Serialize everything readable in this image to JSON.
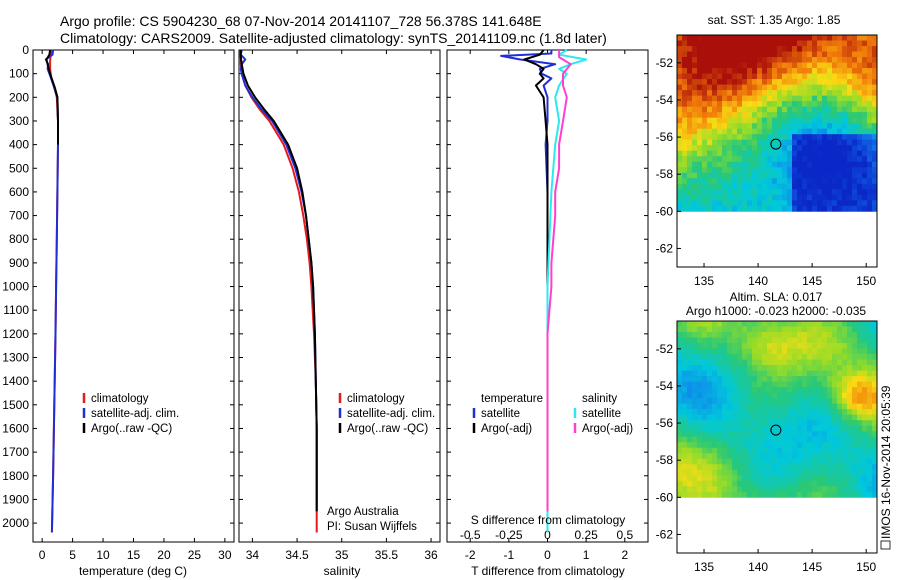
{
  "header": {
    "line1": "Argo profile: CS 5904230_68 07-Nov-2014 20141107_728 56.378S 141.648E",
    "line2": "Climatology: CARS2009. Satellite-adjusted climatology: synTS_20141109.nc (1.8d later)"
  },
  "colors": {
    "climatology": "#e41a1c",
    "satellite": "#1f2fd6",
    "argo": "#000000",
    "satellite_s": "#2ee8f0",
    "argo_s": "#ff3fd0"
  },
  "chart_data": [
    {
      "type": "line",
      "id": "temperature-panel",
      "xlabel": "temperature (deg C)",
      "ylabel": "",
      "xlim": [
        -1.5,
        31.5
      ],
      "ylim": [
        2080,
        0
      ],
      "x_ticks": [
        0,
        5,
        10,
        15,
        20,
        25,
        30
      ],
      "x_tick_labels": [
        "0",
        "5",
        "10",
        "15",
        "20",
        "25",
        "30"
      ],
      "y_ticks": [
        0,
        100,
        200,
        300,
        400,
        500,
        600,
        700,
        800,
        900,
        1000,
        1100,
        1200,
        1300,
        1400,
        1500,
        1600,
        1700,
        1800,
        1900,
        2000
      ],
      "legend": [
        "climatology",
        "satellite-adj. clim.",
        "Argo(..raw -QC)"
      ],
      "series": [
        {
          "name": "climatology",
          "color_key": "climatology",
          "depth": [
            0,
            20,
            50,
            80,
            120,
            150,
            200,
            300,
            400,
            600,
            800,
            1000,
            1200,
            1500,
            1800,
            2040
          ],
          "values": [
            1.5,
            1.4,
            1.3,
            1.3,
            1.5,
            1.9,
            2.4,
            2.6,
            2.6,
            2.5,
            2.4,
            2.3,
            2.2,
            2.0,
            1.8,
            1.6
          ]
        },
        {
          "name": "satellite-adj. clim.",
          "color_key": "satellite",
          "depth": [
            0,
            20,
            40,
            60,
            80,
            100,
            130,
            160,
            200,
            300,
            400,
            600,
            800,
            1000,
            1200,
            1500,
            1800,
            2040
          ],
          "values": [
            1.8,
            1.7,
            0.6,
            1.0,
            0.9,
            1.2,
            1.6,
            2.0,
            2.5,
            2.6,
            2.6,
            2.5,
            2.4,
            2.3,
            2.2,
            2.0,
            1.8,
            1.6
          ]
        },
        {
          "name": "Argo(..raw -QC)",
          "color_key": "argo",
          "depth": [
            0,
            20,
            40,
            60,
            80,
            100,
            130,
            160,
            200,
            300,
            400
          ],
          "values": [
            1.3,
            1.2,
            0.7,
            0.9,
            1.1,
            1.3,
            1.7,
            2.1,
            2.5,
            2.6,
            2.6
          ]
        }
      ]
    },
    {
      "type": "line",
      "id": "salinity-panel",
      "xlabel": "salinity",
      "xlim": [
        33.85,
        36.1
      ],
      "ylim": [
        2080,
        0
      ],
      "x_ticks": [
        34,
        34.5,
        35,
        35.5,
        36
      ],
      "x_tick_labels": [
        "34",
        "34.5",
        "35",
        "35.5",
        "36"
      ],
      "legend": [
        "climatology",
        "satellite-adj. clim.",
        "Argo(..raw -QC)"
      ],
      "annotations": [
        "Argo Australia",
        "PI: Susan Wijffels"
      ],
      "series": [
        {
          "name": "climatology",
          "color_key": "climatology",
          "depth": [
            0,
            30,
            60,
            100,
            150,
            200,
            250,
            300,
            400,
            500,
            600,
            700,
            800,
            900,
            1000,
            1200,
            1400,
            1600,
            1800,
            2040
          ],
          "values": [
            33.87,
            33.87,
            33.87,
            33.88,
            33.92,
            33.99,
            34.08,
            34.19,
            34.35,
            34.45,
            34.52,
            34.57,
            34.61,
            34.64,
            34.66,
            34.69,
            34.71,
            34.72,
            34.72,
            34.72
          ]
        },
        {
          "name": "satellite-adj. clim.",
          "color_key": "satellite",
          "depth": [
            0,
            20,
            40,
            60,
            80,
            100,
            150,
            200,
            250,
            300,
            400,
            500,
            600,
            700,
            800,
            900,
            1000,
            1200,
            1400,
            1600,
            1800,
            1950
          ],
          "values": [
            33.88,
            33.87,
            33.92,
            33.88,
            33.87,
            33.88,
            33.92,
            34.0,
            34.1,
            34.22,
            34.38,
            34.48,
            34.55,
            34.6,
            34.63,
            34.66,
            34.68,
            34.7,
            34.71,
            34.72,
            34.72,
            34.72
          ]
        },
        {
          "name": "Argo(..raw -QC)",
          "color_key": "argo",
          "depth": [
            0,
            30,
            60,
            100,
            150,
            200,
            250,
            300,
            400,
            500,
            600,
            700,
            800,
            900,
            1000,
            1200,
            1400,
            1600,
            1800,
            1950
          ],
          "values": [
            33.87,
            33.87,
            33.88,
            33.9,
            33.95,
            34.03,
            34.13,
            34.24,
            34.4,
            34.5,
            34.56,
            34.6,
            34.63,
            34.66,
            34.68,
            34.7,
            34.71,
            34.72,
            34.72,
            34.72
          ]
        }
      ]
    },
    {
      "type": "line",
      "id": "difference-panel",
      "xlabel": "T difference from climatology",
      "top_label": "S difference from climatology",
      "xlim": [
        -2.6,
        2.6
      ],
      "ylim": [
        2080,
        0
      ],
      "x_ticks": [
        -2,
        -1,
        0,
        1,
        2
      ],
      "x_tick_labels": [
        "-2",
        "-1",
        "0",
        "1",
        "2"
      ],
      "s_ticks": [
        -2,
        -1,
        0,
        1,
        2
      ],
      "s_tick_labels": [
        "-0.5",
        "-0.25",
        "0",
        "0.25",
        "0.5"
      ],
      "legend_headers": [
        "temperature",
        "salinity"
      ],
      "legend": [
        "satellite",
        "Argo(-adj)",
        "satellite",
        "Argo(-adj)"
      ],
      "series": [
        {
          "name": "T satellite",
          "color_key": "satellite",
          "depth": [
            0,
            15,
            25,
            40,
            60,
            80,
            100,
            120,
            150,
            200,
            300,
            400,
            600,
            800,
            1000,
            1050
          ],
          "values": [
            0.1,
            0.1,
            -1.2,
            -0.7,
            0.2,
            -0.2,
            -0.15,
            0.1,
            -0.1,
            0.0,
            0.0,
            -0.05,
            0.0,
            0.0,
            0.0,
            0.0
          ]
        },
        {
          "name": "T Argo(-adj)",
          "color_key": "argo",
          "depth": [
            0,
            20,
            40,
            60,
            80,
            100,
            120,
            150,
            200,
            300,
            400,
            500,
            600,
            700,
            800,
            900,
            1000
          ],
          "values": [
            -0.1,
            -0.2,
            -0.6,
            -0.3,
            -0.1,
            -0.2,
            -0.1,
            -0.3,
            -0.1,
            -0.05,
            0.0,
            0.0,
            0.0,
            0.0,
            0.0,
            0.0,
            0.0
          ]
        },
        {
          "name": "S satellite",
          "color_key": "satellite_s",
          "depth": [
            0,
            20,
            40,
            60,
            80,
            100,
            150,
            200,
            300,
            400,
            600,
            800,
            1000,
            1200,
            1500,
            1800,
            2040
          ],
          "values": [
            0.5,
            0.3,
            1.0,
            0.6,
            0.3,
            0.5,
            0.3,
            0.2,
            0.3,
            0.2,
            0.1,
            0.05,
            0.0,
            0.0,
            0.0,
            0.0,
            0.0
          ]
        },
        {
          "name": "S Argo(-adj)",
          "color_key": "argo_s",
          "depth": [
            0,
            30,
            60,
            100,
            150,
            200,
            300,
            400,
            500,
            600,
            700,
            800,
            900,
            1000,
            1200,
            1500,
            1800,
            1950
          ],
          "values": [
            0.3,
            0.3,
            0.6,
            0.4,
            0.4,
            0.5,
            0.4,
            0.3,
            0.3,
            0.2,
            0.2,
            0.15,
            0.1,
            0.1,
            0.0,
            0.0,
            0.0,
            0.0
          ]
        }
      ]
    },
    {
      "type": "heatmap",
      "id": "sst-map",
      "title": "sat. SST: 1.35 Argo: 1.85",
      "x_ticks": [
        135,
        140,
        145,
        150
      ],
      "x_tick_labels": [
        "135",
        "140",
        "145",
        "150"
      ],
      "y_ticks": [
        -52,
        -54,
        -56,
        -58,
        -60,
        -62
      ],
      "y_tick_labels": [
        "-52",
        "-54",
        "-56",
        "-58",
        "-60",
        "-62"
      ],
      "xlim": [
        132.5,
        151
      ],
      "ylim": [
        -63,
        -50.5
      ],
      "data_ylim": [
        -60,
        -50.5
      ],
      "marker": {
        "lon": 141.648,
        "lat": -56.378
      }
    },
    {
      "type": "heatmap",
      "id": "sla-map",
      "title": "Altim. SLA: 0.017",
      "title2": "Argo h1000: -0.023 h2000: -0.035",
      "x_ticks": [
        135,
        140,
        145,
        150
      ],
      "x_tick_labels": [
        "135",
        "140",
        "145",
        "150"
      ],
      "y_ticks": [
        -52,
        -54,
        -56,
        -58,
        -60,
        -62
      ],
      "y_tick_labels": [
        "-52",
        "-54",
        "-56",
        "-58",
        "-60",
        "-62"
      ],
      "xlim": [
        132.5,
        151
      ],
      "ylim": [
        -63,
        -50.5
      ],
      "data_ylim": [
        -60,
        -50.5
      ],
      "marker": {
        "lon": 141.648,
        "lat": -56.378
      }
    }
  ],
  "footer": {
    "stamp": "IMOS 16-Nov-2014 20:05:39"
  }
}
